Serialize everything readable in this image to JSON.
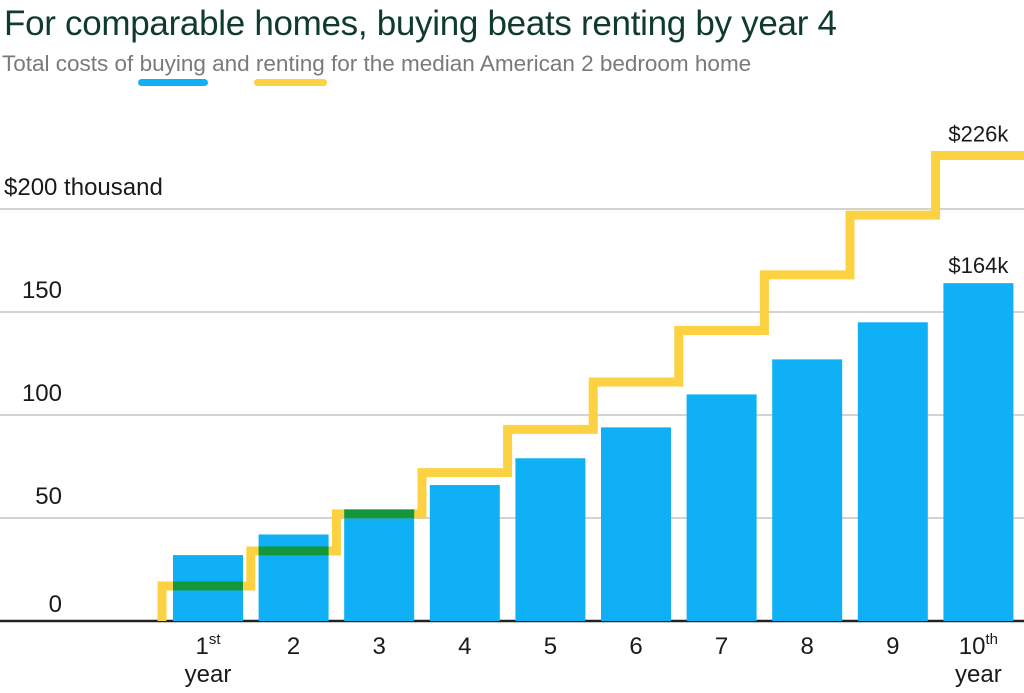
{
  "title": "For comparable homes, buying beats renting by year 4",
  "subtitle": {
    "prefix": "Total costs of ",
    "buy_word": "buying",
    "middle": " and ",
    "rent_word": "renting",
    "suffix": " for the median American 2 bedroom home"
  },
  "colors": {
    "buy": "#0fb0f5",
    "rent": "#fcd142",
    "overlap": "#14963c",
    "grid": "#d3d3d3",
    "axis": "#222222",
    "title": "#0f3b2e",
    "subtitle": "#7a7a7a"
  },
  "chart_data": {
    "type": "bar",
    "title": "For comparable homes, buying beats renting by year 4",
    "subtitle": "Total costs of buying and renting for the median American 2 bedroom home",
    "xlabel": "",
    "ylabel": "",
    "ylim": [
      0,
      235
    ],
    "categories": [
      "1",
      "2",
      "3",
      "4",
      "5",
      "6",
      "7",
      "8",
      "9",
      "10"
    ],
    "x_tick_labels": [
      {
        "main": "1",
        "sup": "st",
        "sub": "year"
      },
      {
        "main": "2",
        "sup": "",
        "sub": ""
      },
      {
        "main": "3",
        "sup": "",
        "sub": ""
      },
      {
        "main": "4",
        "sup": "",
        "sub": ""
      },
      {
        "main": "5",
        "sup": "",
        "sub": ""
      },
      {
        "main": "6",
        "sup": "",
        "sub": ""
      },
      {
        "main": "7",
        "sup": "",
        "sub": ""
      },
      {
        "main": "8",
        "sup": "",
        "sub": ""
      },
      {
        "main": "9",
        "sup": "",
        "sub": ""
      },
      {
        "main": "10",
        "sup": "th",
        "sub": "year"
      }
    ],
    "y_ticks": [
      0,
      50,
      100,
      150,
      200
    ],
    "y_tick_labels": [
      "0",
      "50",
      "100",
      "150",
      "$200 thousand"
    ],
    "grid": true,
    "series": [
      {
        "name": "buying",
        "type": "bar",
        "values": [
          32,
          42,
          52,
          66,
          79,
          94,
          110,
          127,
          145,
          164
        ]
      },
      {
        "name": "renting",
        "type": "step",
        "values": [
          17,
          34,
          52,
          72,
          93,
          116,
          141,
          168,
          197,
          226
        ]
      }
    ],
    "annotations": [
      {
        "series": "renting",
        "index": 9,
        "text": "$226k"
      },
      {
        "series": "buying",
        "index": 9,
        "text": "$164k"
      }
    ]
  }
}
